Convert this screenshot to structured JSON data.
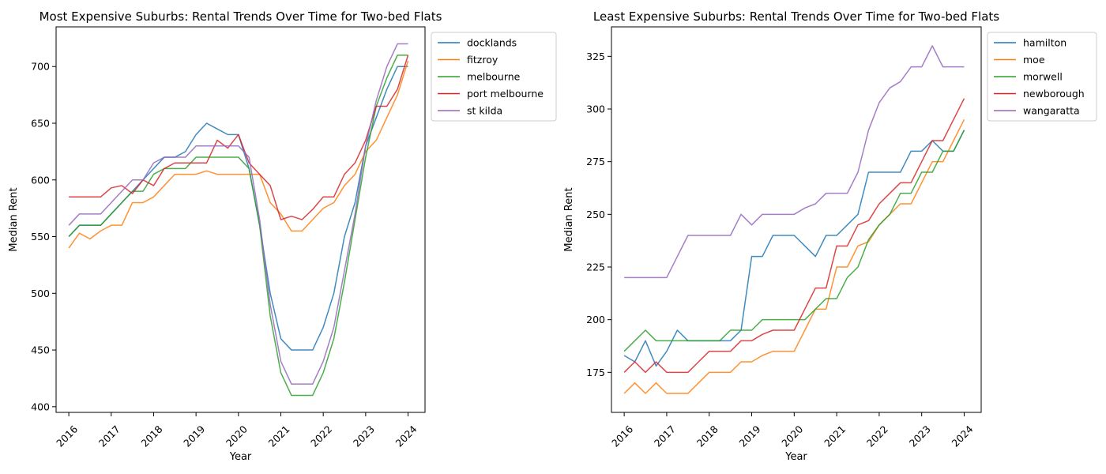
{
  "colors": {
    "blue": "#1f77b4",
    "orange": "#ff7f0e",
    "green": "#2ca02c",
    "red": "#d62728",
    "purple": "#9467bd"
  },
  "chart_data": [
    {
      "type": "line",
      "title": "Most Expensive Suburbs: Rental Trends Over Time for Two-bed Flats",
      "xlabel": "Year",
      "ylabel": "Median Rent",
      "xlim": [
        2015.7,
        2024.4
      ],
      "ylim": [
        395,
        735
      ],
      "xticks": [
        2016,
        2017,
        2018,
        2019,
        2020,
        2021,
        2022,
        2023,
        2024
      ],
      "yticks": [
        400,
        450,
        500,
        550,
        600,
        650,
        700
      ],
      "legend_position": "outside-top-right",
      "grid": false,
      "x": [
        2016,
        2016.25,
        2016.5,
        2016.75,
        2017,
        2017.25,
        2017.5,
        2017.75,
        2018,
        2018.25,
        2018.5,
        2018.75,
        2019,
        2019.25,
        2019.5,
        2019.75,
        2020,
        2020.25,
        2020.5,
        2020.75,
        2021,
        2021.25,
        2021.5,
        2021.75,
        2022,
        2022.25,
        2022.5,
        2022.75,
        2023,
        2023.25,
        2023.5,
        2023.75,
        2024
      ],
      "series": [
        {
          "name": "docklands",
          "color": "#1f77b4",
          "values": [
            550,
            560,
            560,
            560,
            570,
            580,
            590,
            600,
            610,
            620,
            620,
            625,
            640,
            650,
            645,
            640,
            640,
            610,
            560,
            500,
            460,
            450,
            450,
            450,
            470,
            500,
            550,
            580,
            630,
            655,
            680,
            700,
            700
          ]
        },
        {
          "name": "fitzroy",
          "color": "#ff7f0e",
          "values": [
            540,
            553,
            548,
            555,
            560,
            560,
            580,
            580,
            585,
            595,
            605,
            605,
            605,
            608,
            605,
            605,
            605,
            605,
            605,
            580,
            570,
            555,
            555,
            565,
            575,
            580,
            595,
            605,
            625,
            635,
            655,
            675,
            705
          ]
        },
        {
          "name": "melbourne",
          "color": "#2ca02c",
          "values": [
            550,
            560,
            560,
            560,
            570,
            580,
            590,
            590,
            605,
            610,
            610,
            610,
            620,
            620,
            620,
            620,
            620,
            610,
            560,
            480,
            430,
            410,
            410,
            410,
            430,
            460,
            510,
            565,
            620,
            665,
            690,
            710,
            710
          ]
        },
        {
          "name": "port melbourne",
          "color": "#d62728",
          "values": [
            585,
            585,
            585,
            585,
            593,
            595,
            588,
            600,
            595,
            610,
            615,
            615,
            615,
            615,
            635,
            628,
            640,
            615,
            605,
            595,
            565,
            568,
            565,
            574,
            585,
            585,
            605,
            615,
            635,
            665,
            665,
            680,
            710
          ]
        },
        {
          "name": "st kilda",
          "color": "#9467bd",
          "values": [
            560,
            570,
            570,
            570,
            580,
            590,
            600,
            600,
            615,
            620,
            620,
            620,
            630,
            630,
            630,
            630,
            630,
            620,
            565,
            490,
            440,
            420,
            420,
            420,
            440,
            470,
            520,
            570,
            630,
            670,
            700,
            720,
            720
          ]
        }
      ]
    },
    {
      "type": "line",
      "title": "Least Expensive Suburbs: Rental Trends Over Time for Two-bed Flats",
      "xlabel": "Year",
      "ylabel": "Median Rent",
      "xlim": [
        2015.7,
        2024.4
      ],
      "ylim": [
        156,
        339
      ],
      "xticks": [
        2016,
        2017,
        2018,
        2019,
        2020,
        2021,
        2022,
        2023,
        2024
      ],
      "yticks": [
        175,
        200,
        225,
        250,
        275,
        300,
        325
      ],
      "legend_position": "outside-top-right",
      "grid": false,
      "x": [
        2016,
        2016.25,
        2016.5,
        2016.75,
        2017,
        2017.25,
        2017.5,
        2017.75,
        2018,
        2018.25,
        2018.5,
        2018.75,
        2019,
        2019.25,
        2019.5,
        2019.75,
        2020,
        2020.25,
        2020.5,
        2020.75,
        2021,
        2021.25,
        2021.5,
        2021.75,
        2022,
        2022.25,
        2022.5,
        2022.75,
        2023,
        2023.25,
        2023.5,
        2023.75,
        2024
      ],
      "series": [
        {
          "name": "hamilton",
          "color": "#1f77b4",
          "values": [
            183,
            180,
            190,
            178,
            185,
            195,
            190,
            190,
            190,
            190,
            190,
            195,
            230,
            230,
            240,
            240,
            240,
            235,
            230,
            240,
            240,
            245,
            250,
            270,
            270,
            270,
            270,
            280,
            280,
            285,
            280,
            280,
            290
          ]
        },
        {
          "name": "moe",
          "color": "#ff7f0e",
          "values": [
            165,
            170,
            165,
            170,
            165,
            165,
            165,
            170,
            175,
            175,
            175,
            180,
            180,
            183,
            185,
            185,
            185,
            195,
            205,
            205,
            225,
            225,
            235,
            237,
            245,
            250,
            255,
            255,
            265,
            275,
            275,
            285,
            295
          ]
        },
        {
          "name": "morwell",
          "color": "#2ca02c",
          "values": [
            185,
            190,
            195,
            190,
            190,
            190,
            190,
            190,
            190,
            190,
            195,
            195,
            195,
            200,
            200,
            200,
            200,
            200,
            205,
            210,
            210,
            220,
            225,
            238,
            245,
            250,
            260,
            260,
            270,
            270,
            280,
            280,
            290
          ]
        },
        {
          "name": "newborough",
          "color": "#d62728",
          "values": [
            175,
            180,
            175,
            180,
            175,
            175,
            175,
            180,
            185,
            185,
            185,
            190,
            190,
            193,
            195,
            195,
            195,
            205,
            215,
            215,
            235,
            235,
            245,
            247,
            255,
            260,
            265,
            265,
            275,
            285,
            285,
            295,
            305
          ]
        },
        {
          "name": "wangaratta",
          "color": "#9467bd",
          "values": [
            220,
            220,
            220,
            220,
            220,
            230,
            240,
            240,
            240,
            240,
            240,
            250,
            245,
            250,
            250,
            250,
            250,
            253,
            255,
            260,
            260,
            260,
            270,
            290,
            303,
            310,
            313,
            320,
            320,
            330,
            320,
            320,
            320
          ]
        }
      ]
    }
  ]
}
